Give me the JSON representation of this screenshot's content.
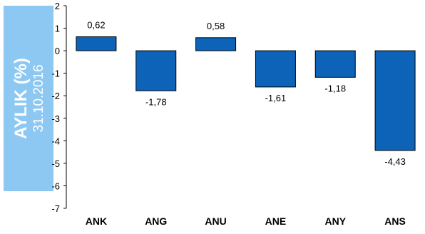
{
  "side_panel": {
    "title": "AYLIK (%)",
    "date": "31.10.2016"
  },
  "chart_data": {
    "type": "bar",
    "categories": [
      "ANK",
      "ANG",
      "ANU",
      "ANE",
      "ANY",
      "ANS"
    ],
    "values": [
      0.62,
      -1.78,
      0.58,
      -1.61,
      -1.18,
      -4.43
    ],
    "value_labels": [
      "0,62",
      "-1,78",
      "0,58",
      "-1,61",
      "-1,18",
      "-4,43"
    ],
    "ylim": [
      -7,
      2
    ],
    "yticks": [
      2,
      1,
      0,
      -1,
      -2,
      -3,
      -4,
      -5,
      -6,
      -7
    ],
    "ytick_labels": [
      "2",
      "1",
      "0",
      "-1",
      "-2",
      "-3",
      "-4",
      "-5",
      "-6",
      "-7"
    ],
    "grid": false,
    "bar_color": "#0c63b8",
    "bar_edge_color": "#000000"
  }
}
